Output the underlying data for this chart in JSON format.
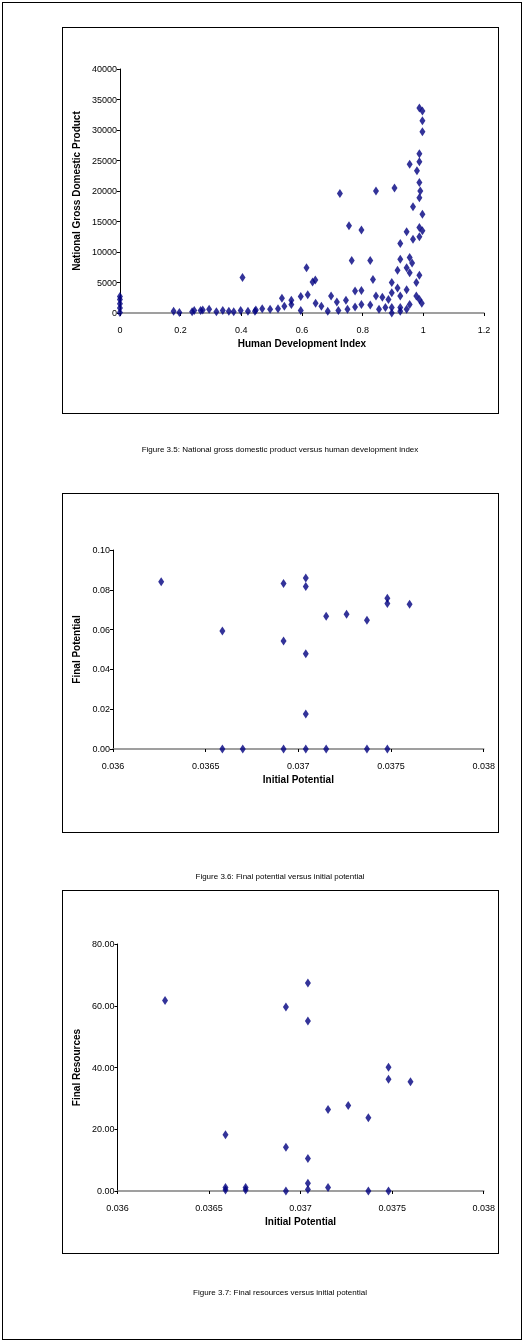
{
  "chart_data": [
    {
      "type": "scatter",
      "xlabel": "Human Development Index",
      "ylabel": "National Gross Domestic Product",
      "annotations": [
        "Figure 3.5:  National gross domestic product versus human development index"
      ],
      "marker": "diamond",
      "grid": false,
      "xlim": [
        0,
        1.2
      ],
      "xticks": [
        0,
        0.2,
        0.4,
        0.6,
        0.8,
        1,
        1.2
      ],
      "ylim": [
        0,
        40000
      ],
      "yticks": [
        0,
        5000,
        10000,
        15000,
        20000,
        25000,
        30000,
        35000,
        40000
      ],
      "series": [
        {
          "color": "#000080",
          "x": [
            0,
            0,
            0,
            0,
            0,
            0.177,
            0.196,
            0.238,
            0.245,
            0.266,
            0.273,
            0.294,
            0.318,
            0.339,
            0.359,
            0.375,
            0.398,
            0.404,
            0.422,
            0.445,
            0.448,
            0.469,
            0.495,
            0.521,
            0.534,
            0.542,
            0.565,
            0.565,
            0.596,
            0.596,
            0.615,
            0.619,
            0.635,
            0.644,
            0.645,
            0.664,
            0.685,
            0.696,
            0.715,
            0.72,
            0.725,
            0.745,
            0.75,
            0.755,
            0.764,
            0.775,
            0.775,
            0.796,
            0.796,
            0.796,
            0.825,
            0.825,
            0.834,
            0.844,
            0.844,
            0.854,
            0.865,
            0.875,
            0.885,
            0.896,
            0.896,
            0.896,
            0.896,
            0.905,
            0.915,
            0.915,
            0.924,
            0.924,
            0.924,
            0.924,
            0.924,
            0.945,
            0.945,
            0.945,
            0.945,
            0.955,
            0.955,
            0.955,
            0.955,
            0.963,
            0.966,
            0.966,
            0.977,
            0.977,
            0.979,
            0.987,
            0.987,
            0.987,
            0.987,
            0.987,
            0.987,
            0.987,
            0.987,
            0.987,
            0.99,
            0.995,
            0.997,
            0.997,
            0.997,
            0.997,
            0.997
          ],
          "values": [
            100,
            800,
            1500,
            2200,
            2700,
            300,
            100,
            200,
            400,
            400,
            500,
            600,
            200,
            400,
            300,
            200,
            400,
            5800,
            300,
            300,
            500,
            700,
            600,
            700,
            2400,
            1100,
            1400,
            2100,
            2700,
            400,
            7400,
            3000,
            5100,
            5400,
            1600,
            1100,
            300,
            2800,
            1800,
            400,
            19600,
            2100,
            600,
            14300,
            8600,
            3600,
            1000,
            13600,
            3700,
            1400,
            8600,
            1300,
            5500,
            20000,
            2800,
            600,
            2600,
            900,
            2200,
            5000,
            3300,
            900,
            0,
            20500,
            7000,
            4100,
            11400,
            8800,
            2800,
            900,
            300,
            13300,
            7400,
            3800,
            600,
            24400,
            9100,
            6600,
            1400,
            8200,
            17400,
            12100,
            5000,
            2800,
            23300,
            33600,
            26100,
            24800,
            21400,
            18900,
            14000,
            12500,
            6200,
            2200,
            20000,
            1600,
            33100,
            31500,
            29700,
            16200,
            13500
          ]
        }
      ]
    },
    {
      "type": "scatter",
      "xlabel": "Initial Potential",
      "ylabel": "Final Potential",
      "annotations": [
        "Figure 3.6: Final potential versus initial potential"
      ],
      "marker": "diamond",
      "grid": false,
      "xlim": [
        0.036,
        0.038
      ],
      "xticks": [
        0.036,
        0.0365,
        0.037,
        0.0375,
        0.038
      ],
      "ylim": [
        0,
        0.1
      ],
      "yticks": [
        {
          "value": 0,
          "label": "0.00"
        },
        {
          "value": 0.02,
          "label": "0.02"
        },
        {
          "value": 0.04,
          "label": "0.04"
        },
        {
          "value": 0.06,
          "label": "0.06"
        },
        {
          "value": 0.08,
          "label": "0.08"
        },
        {
          "value": 0.1,
          "label": "0.10"
        }
      ],
      "series": [
        {
          "color": "#000080",
          "x": [
            0.03626,
            0.03659,
            0.03659,
            0.0367,
            0.03692,
            0.03692,
            0.03692,
            0.03704,
            0.03704,
            0.03704,
            0.03704,
            0.03704,
            0.03715,
            0.03715,
            0.03726,
            0.03737,
            0.03737,
            0.03748,
            0.03748,
            0.03748,
            0.0376
          ],
          "values": [
            0.084,
            0.0593,
            0,
            0,
            0.0832,
            0.0543,
            0,
            0.0859,
            0.0817,
            0.0479,
            0.0176,
            0,
            0.0667,
            0,
            0.0677,
            0.0647,
            0,
            0.0758,
            0.0731,
            0,
            0.0728
          ]
        }
      ]
    },
    {
      "type": "scatter",
      "xlabel": "Initial Potential",
      "ylabel": "Final Resources",
      "annotations": [
        "Figure 3.7: Final resources versus initial potential"
      ],
      "marker": "diamond",
      "grid": false,
      "xlim": [
        0.036,
        0.038
      ],
      "xticks": [
        0.036,
        0.0365,
        0.037,
        0.0375,
        0.038
      ],
      "ylim": [
        0,
        80
      ],
      "yticks": [
        {
          "value": 0,
          "label": "0.00"
        },
        {
          "value": 20,
          "label": "20.00"
        },
        {
          "value": 40,
          "label": "40.00"
        },
        {
          "value": 60,
          "label": "60.00"
        },
        {
          "value": 80,
          "label": "80.00"
        }
      ],
      "series": [
        {
          "color": "#000080",
          "x": [
            0.03626,
            0.03659,
            0.03659,
            0.03659,
            0.0367,
            0.0367,
            0.03692,
            0.03692,
            0.03692,
            0.03704,
            0.03704,
            0.03704,
            0.03704,
            0.03704,
            0.03715,
            0.03715,
            0.03726,
            0.03737,
            0.03737,
            0.03748,
            0.03748,
            0.03748,
            0.0376
          ],
          "values": [
            61.7,
            18.2,
            1.1,
            0.3,
            1.1,
            0.3,
            59.6,
            14.2,
            0,
            67.4,
            55.1,
            10.5,
            2.5,
            0.5,
            26.4,
            1.1,
            27.7,
            23.7,
            0,
            40.1,
            36.2,
            0,
            35.4
          ]
        }
      ]
    }
  ]
}
